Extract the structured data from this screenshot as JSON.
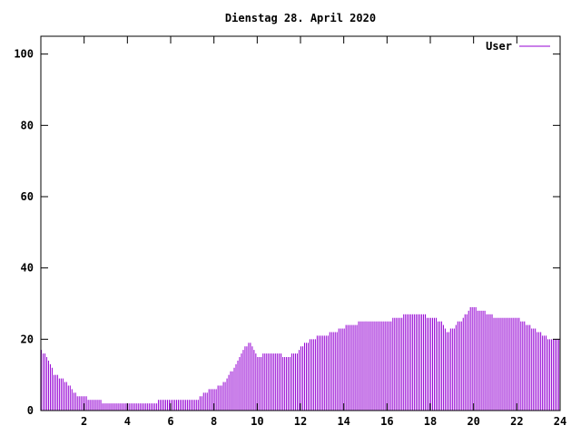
{
  "chart_data": {
    "type": "bar",
    "title": "Dienstag 28. April 2020",
    "xlabel": "",
    "ylabel": "",
    "xlim": [
      0,
      24
    ],
    "ylim": [
      0,
      105
    ],
    "x_ticks": [
      2,
      4,
      6,
      8,
      10,
      12,
      14,
      16,
      18,
      20,
      22,
      24
    ],
    "y_ticks": [
      0,
      20,
      40,
      60,
      80,
      100
    ],
    "grid": false,
    "legend_position": "top-right",
    "series": [
      {
        "name": "User",
        "color": "#9400d3",
        "bin_minutes": 5,
        "anchors": [
          [
            0.0,
            17
          ],
          [
            0.25,
            15
          ],
          [
            0.4,
            13
          ],
          [
            0.6,
            10
          ],
          [
            1.0,
            9
          ],
          [
            1.3,
            7
          ],
          [
            1.5,
            5
          ],
          [
            1.8,
            4
          ],
          [
            2.5,
            3
          ],
          [
            3.0,
            2
          ],
          [
            4.0,
            2
          ],
          [
            5.3,
            2
          ],
          [
            5.5,
            3
          ],
          [
            7.2,
            3
          ],
          [
            7.5,
            5
          ],
          [
            8.0,
            6
          ],
          [
            8.5,
            8
          ],
          [
            9.0,
            13
          ],
          [
            9.4,
            18
          ],
          [
            9.7,
            19
          ],
          [
            10.0,
            15
          ],
          [
            10.5,
            16
          ],
          [
            11.0,
            16
          ],
          [
            11.3,
            15
          ],
          [
            11.8,
            16
          ],
          [
            12.0,
            18
          ],
          [
            12.5,
            20
          ],
          [
            13.0,
            21
          ],
          [
            13.6,
            22
          ],
          [
            14.2,
            24
          ],
          [
            15.0,
            25
          ],
          [
            16.0,
            25
          ],
          [
            16.5,
            26
          ],
          [
            17.0,
            27
          ],
          [
            17.5,
            27
          ],
          [
            18.0,
            26
          ],
          [
            18.5,
            25
          ],
          [
            18.7,
            22
          ],
          [
            19.0,
            23
          ],
          [
            19.5,
            26
          ],
          [
            19.9,
            29
          ],
          [
            20.3,
            28
          ],
          [
            20.7,
            27
          ],
          [
            21.0,
            26
          ],
          [
            21.5,
            26
          ],
          [
            22.0,
            26
          ],
          [
            22.5,
            24
          ],
          [
            23.0,
            22
          ],
          [
            23.5,
            20
          ],
          [
            24.0,
            20
          ]
        ]
      }
    ]
  }
}
